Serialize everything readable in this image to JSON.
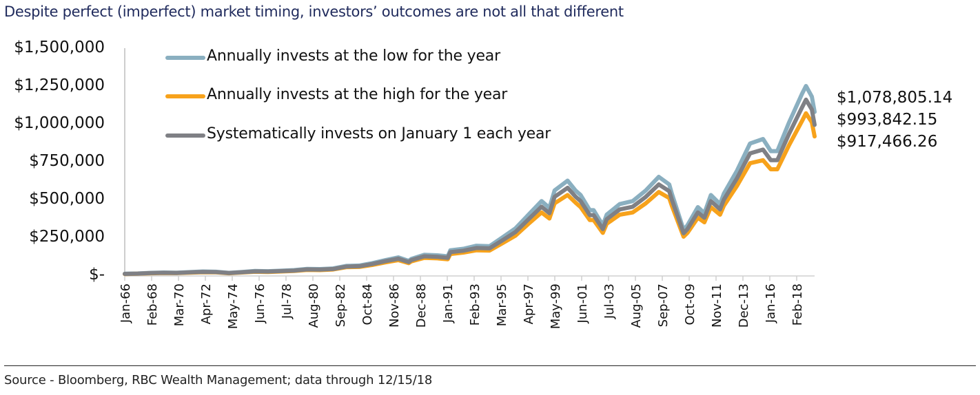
{
  "title": "Despite perfect (imperfect) market timing, investors’ outcomes are not all that different",
  "source": "Source - Bloomberg, RBC Wealth Management; data through 12/15/18",
  "chart_data": {
    "type": "line",
    "title": "Despite perfect (imperfect) market timing, investors’ outcomes are not all that different",
    "xlabel": "",
    "ylabel": "",
    "ylim": [
      0,
      1500000
    ],
    "yticks": [
      0,
      250000,
      500000,
      750000,
      1000000,
      1250000,
      1500000
    ],
    "ytick_labels": [
      "$-",
      "$250,000",
      "$500,000",
      "$750,000",
      "$1,000,000",
      "$1,250,000",
      "$1,500,000"
    ],
    "xlim": [
      1966.0,
      2018.96
    ],
    "xtick_labels": [
      "Jan-66",
      "Feb-68",
      "Mar-70",
      "Apr-72",
      "May-74",
      "Jun-76",
      "Jul-78",
      "Aug-80",
      "Sep-82",
      "Oct-84",
      "Nov-86",
      "Dec-88",
      "Jan-91",
      "Feb-93",
      "Mar-95",
      "Apr-97",
      "May-99",
      "Jun-01",
      "Jul-03",
      "Aug-05",
      "Sep-07",
      "Oct-09",
      "Nov-11",
      "Dec-13",
      "Jan-16",
      "Feb-18"
    ],
    "grid": false,
    "legend_position": "top-left",
    "x": [
      1966.0,
      1967.0,
      1968.0,
      1969.0,
      1970.0,
      1971.0,
      1972.0,
      1973.0,
      1974.0,
      1975.0,
      1976.0,
      1977.0,
      1978.0,
      1979.0,
      1980.0,
      1981.0,
      1982.0,
      1983.0,
      1984.0,
      1985.0,
      1986.0,
      1987.0,
      1987.8,
      1988.0,
      1989.0,
      1990.0,
      1990.8,
      1991.0,
      1992.0,
      1993.0,
      1994.0,
      1995.0,
      1996.0,
      1997.0,
      1998.0,
      1998.6,
      1999.0,
      2000.0,
      2000.6,
      2001.0,
      2001.7,
      2002.0,
      2002.7,
      2003.0,
      2004.0,
      2005.0,
      2006.0,
      2007.0,
      2007.8,
      2008.0,
      2008.9,
      2009.2,
      2010.0,
      2010.5,
      2011.0,
      2011.7,
      2012.0,
      2013.0,
      2014.0,
      2015.0,
      2015.6,
      2016.1,
      2017.0,
      2018.0,
      2018.3,
      2018.75,
      2018.96
    ],
    "series": [
      {
        "name": "Annually invests at the low for the year",
        "color": "#8aafc0",
        "values": [
          10000,
          12000,
          16000,
          18000,
          17000,
          21000,
          25000,
          23000,
          16000,
          22000,
          28000,
          27000,
          30000,
          34000,
          42000,
          41000,
          45000,
          62000,
          64000,
          80000,
          100000,
          118000,
          95000,
          108000,
          135000,
          132000,
          125000,
          165000,
          175000,
          195000,
          192000,
          250000,
          310000,
          400000,
          490000,
          445000,
          560000,
          625000,
          560000,
          530000,
          430000,
          430000,
          330000,
          400000,
          470000,
          490000,
          560000,
          650000,
          600000,
          540000,
          300000,
          330000,
          450000,
          410000,
          530000,
          470000,
          540000,
          690000,
          870000,
          900000,
          820000,
          820000,
          1010000,
          1200000,
          1250000,
          1180000,
          1078805.14
        ]
      },
      {
        "name": "Annually invests at the high for the year",
        "color": "#f7a21b",
        "values": [
          8000,
          10000,
          13000,
          15000,
          14000,
          17000,
          20000,
          19000,
          13000,
          18000,
          23000,
          22000,
          25000,
          28000,
          35000,
          34000,
          38000,
          53000,
          55000,
          68000,
          85000,
          100000,
          80000,
          92000,
          115000,
          112000,
          106000,
          140000,
          150000,
          165000,
          163000,
          212000,
          262000,
          340000,
          415000,
          375000,
          475000,
          530000,
          480000,
          450000,
          365000,
          365000,
          280000,
          340000,
          400000,
          415000,
          475000,
          550000,
          510000,
          460000,
          255000,
          280000,
          380000,
          350000,
          450000,
          400000,
          460000,
          590000,
          740000,
          760000,
          700000,
          700000,
          860000,
          1020000,
          1070000,
          1010000,
          917466.26
        ]
      },
      {
        "name": "Systematically invests on January 1 each year",
        "color": "#7f8085",
        "values": [
          9000,
          11000,
          14500,
          16500,
          15500,
          19000,
          22500,
          21000,
          14500,
          20000,
          25500,
          24500,
          27500,
          31000,
          38500,
          37500,
          41500,
          57500,
          59500,
          74000,
          92500,
          109000,
          87500,
          100000,
          125000,
          122000,
          115500,
          152500,
          162500,
          180000,
          177500,
          231000,
          286000,
          370000,
          452500,
          410000,
          517500,
          577500,
          520000,
          490000,
          397500,
          397500,
          305000,
          370000,
          435000,
          452500,
          517500,
          600000,
          555000,
          500000,
          277500,
          305000,
          415000,
          380000,
          490000,
          435000,
          500000,
          640000,
          805000,
          830000,
          760000,
          760000,
          935000,
          1110000,
          1160000,
          1095000,
          993842.15
        ]
      }
    ],
    "end_labels": [
      "$1,078,805.14",
      "$993,842.15",
      "$917,466.26"
    ]
  }
}
